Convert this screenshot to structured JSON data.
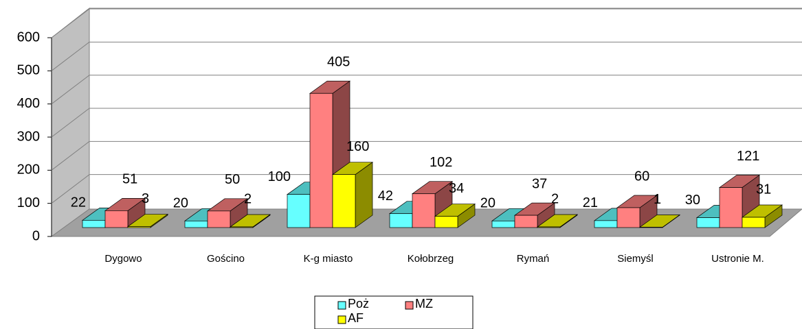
{
  "chart_data": {
    "type": "bar3d",
    "categories": [
      "Dygowo",
      "Gościno",
      "K-g miasto",
      "Kołobrzeg",
      "Rymań",
      "Siemyśl",
      "Ustronie M."
    ],
    "series": [
      {
        "name": "Poż",
        "color": "#66ffff",
        "values": [
          22,
          20,
          100,
          42,
          20,
          21,
          30
        ]
      },
      {
        "name": "MZ",
        "color": "#ff8080",
        "values": [
          51,
          50,
          405,
          102,
          37,
          60,
          121
        ]
      },
      {
        "name": "AF",
        "color": "#ffff00",
        "values": [
          3,
          2,
          160,
          34,
          2,
          1,
          31
        ]
      }
    ],
    "ylim": [
      0,
      600
    ],
    "yticks": [
      0,
      100,
      200,
      300,
      400,
      500,
      600
    ],
    "grid": true
  }
}
